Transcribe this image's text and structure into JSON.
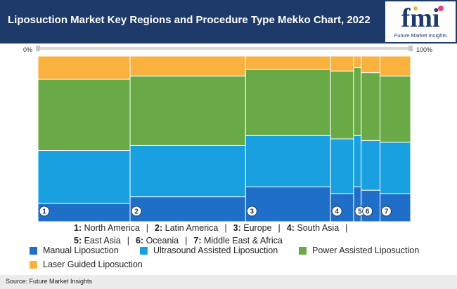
{
  "header": {
    "title": "Liposuction Market Key Regions and Procedure Type Mekko Chart, 2022"
  },
  "logo": {
    "letters": "fmi",
    "company": "Future Market Insights"
  },
  "chart_data": {
    "type": "mekko",
    "axis": {
      "left_label": "0%",
      "right_label": "100%"
    },
    "region_legend": [
      {
        "num": "1",
        "name": "North America"
      },
      {
        "num": "2",
        "name": "Latin America"
      },
      {
        "num": "3",
        "name": "Europe"
      },
      {
        "num": "4",
        "name": "South Asia"
      },
      {
        "num": "5",
        "name": "East Asia"
      },
      {
        "num": "6",
        "name": "Oceania"
      },
      {
        "num": "7",
        "name": "Middle East & Africa"
      }
    ],
    "column_widths": [
      24.4,
      30.6,
      22.5,
      6.1,
      2.0,
      5.0,
      8.1
    ],
    "series": [
      {
        "name": "Manual Liposuction",
        "color": "#1f6fc8",
        "values": [
          11,
          15,
          21,
          17,
          21,
          19,
          17
        ]
      },
      {
        "name": "Ultrasound Assisted Liposuction",
        "color": "#19a0e0",
        "values": [
          32,
          31,
          31,
          33,
          31,
          30,
          31
        ]
      },
      {
        "name": "Power Assisted Liposuction",
        "color": "#6aaa46",
        "values": [
          43,
          42,
          40,
          41,
          41,
          41,
          40
        ]
      },
      {
        "name": "Laser Guided Liposuction",
        "color": "#f9b23d",
        "values": [
          14,
          12,
          8,
          9,
          7,
          10,
          12
        ]
      }
    ]
  },
  "footer": {
    "source": "Source: Future Market Insights"
  }
}
